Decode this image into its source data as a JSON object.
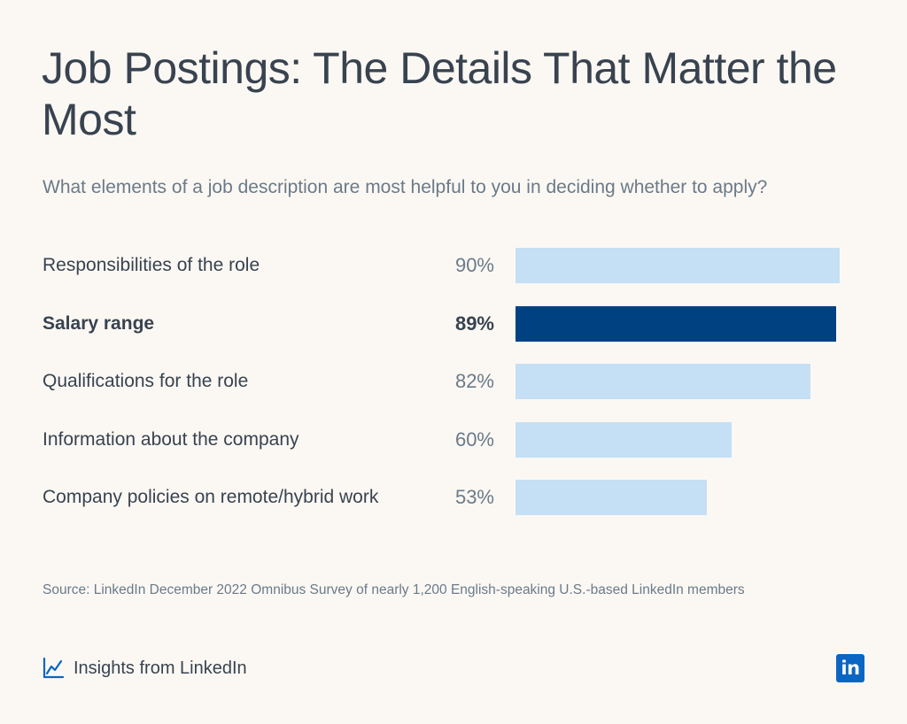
{
  "title": "Job Postings: The Details That Matter the Most",
  "subtitle": "What elements of a job description are most helpful to you in deciding whether to apply?",
  "chart_data": {
    "type": "bar",
    "orientation": "horizontal",
    "categories": [
      "Responsibilities of the role",
      "Salary range",
      "Qualifications for the role",
      "Information about the company",
      "Company policies on remote/hybrid work"
    ],
    "values": [
      90,
      89,
      82,
      60,
      53
    ],
    "value_labels": [
      "90%",
      "89%",
      "82%",
      "60%",
      "53%"
    ],
    "unit": "%",
    "highlighted_category": "Salary range",
    "xlim": [
      0,
      90
    ],
    "grid": false,
    "colors": {
      "default_bar": "#c5dff4",
      "highlight_bar": "#004182"
    }
  },
  "source": "Source: LinkedIn December 2022 Omnibus Survey of nearly 1,200 English-speaking U.S.-based LinkedIn members",
  "footer": {
    "brand_text": "Insights from LinkedIn",
    "brand_icon": "line-chart-icon",
    "logo_text": "in",
    "logo_color": "#0a66c2"
  },
  "colors": {
    "background": "#fbf8f4",
    "text": "#38434f",
    "muted_text": "#6b7a88"
  }
}
